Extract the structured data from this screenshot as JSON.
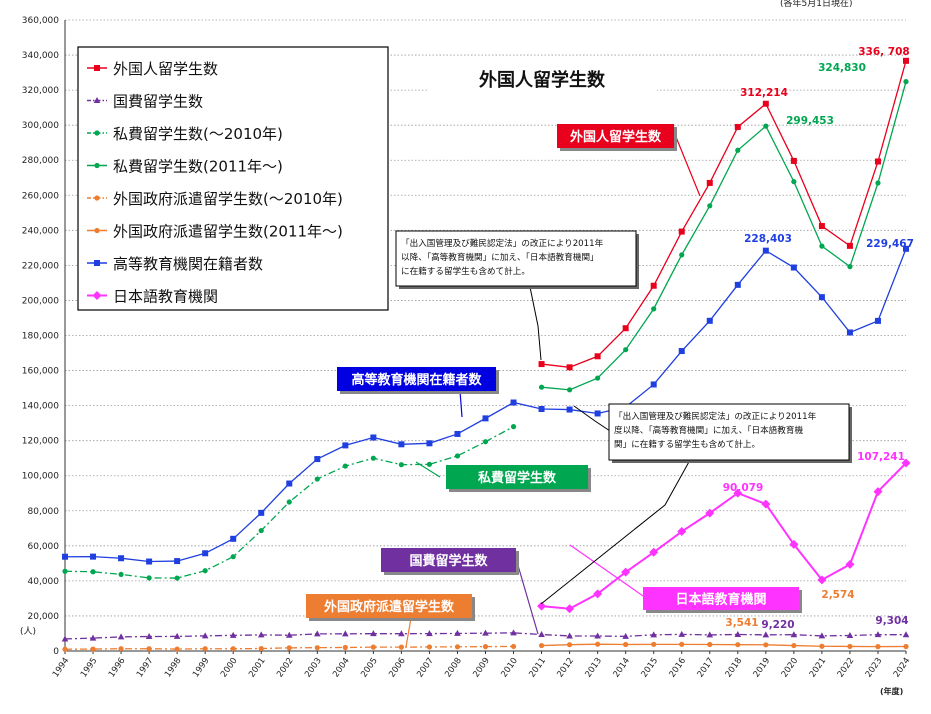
{
  "chart_data": {
    "type": "line",
    "title": "外国人留学生数",
    "date_note": "(各年5月1日現在)",
    "ylabel": "(人)",
    "xlabel": "(年度)",
    "ylim": [
      0,
      360000
    ],
    "y_ticks": [
      "0",
      "20,000",
      "40,000",
      "60,000",
      "80,000",
      "100,000",
      "120,000",
      "140,000",
      "160,000",
      "180,000",
      "200,000",
      "220,000",
      "240,000",
      "260,000",
      "280,000",
      "300,000",
      "320,000",
      "340,000",
      "360,000"
    ],
    "categories": [
      "1994",
      "1995",
      "1996",
      "1997",
      "1998",
      "1999",
      "2000",
      "2001",
      "2002",
      "2003",
      "2004",
      "2005",
      "2006",
      "2007",
      "2008",
      "2009",
      "2010",
      "2011",
      "2012",
      "2013",
      "2014",
      "2015",
      "2016",
      "2017",
      "2018",
      "2019",
      "2020",
      "2021",
      "2022",
      "2023",
      "2024"
    ],
    "grid": true,
    "legend_position": "top-left",
    "series": [
      {
        "name": "外国人留学生数",
        "color": "#e8001c",
        "marker": "square",
        "dash": "solid",
        "values": [
          null,
          null,
          null,
          null,
          null,
          null,
          null,
          null,
          null,
          null,
          null,
          null,
          null,
          null,
          null,
          null,
          null,
          163697,
          161848,
          168145,
          184155,
          208379,
          239287,
          267042,
          298980,
          312214,
          279597,
          242444,
          231146,
          279274,
          336708
        ]
      },
      {
        "name": "国費留学生数",
        "color": "#7030a0",
        "marker": "triangle",
        "dash": "dashdot",
        "values": [
          6880,
          7371,
          8051,
          8250,
          8323,
          8645,
          8930,
          9173,
          9009,
          9746,
          9804,
          9891,
          9869,
          9923,
          10020,
          10168,
          10349,
          9396,
          8588,
          8529,
          8351,
          9223,
          9481,
          9166,
          9423,
          9220,
          9304,
          8640,
          8837,
          9307,
          9304
        ]
      },
      {
        "name": "私費留学生数(～2010年)",
        "color": "#00a650",
        "marker": "circle",
        "dash": "dashdot",
        "values": [
          45500,
          45200,
          43700,
          41700,
          41600,
          45800,
          53800,
          68700,
          85000,
          98100,
          105500,
          110000,
          106300,
          106500,
          111300,
          119400,
          128000,
          null,
          null,
          null,
          null,
          null,
          null,
          null,
          null,
          null,
          null,
          null,
          null,
          null,
          null
        ]
      },
      {
        "name": "私費留学生数(2011年～)",
        "color": "#00a650",
        "marker": "circle",
        "dash": "solid",
        "values": [
          null,
          null,
          null,
          null,
          null,
          null,
          null,
          null,
          null,
          null,
          null,
          null,
          null,
          null,
          null,
          null,
          null,
          150500,
          149000,
          155700,
          171900,
          195200,
          226000,
          254000,
          285700,
          299453,
          267800,
          231000,
          219300,
          267000,
          324830
        ]
      },
      {
        "name": "外国政府派遣留学生数(～2010年)",
        "color": "#ed7d31",
        "marker": "circle",
        "dash": "dashdot",
        "values": [
          1000,
          1100,
          1300,
          1300,
          1100,
          1300,
          1300,
          1400,
          1800,
          1900,
          2000,
          2200,
          2200,
          2300,
          2400,
          2500,
          2600,
          null,
          null,
          null,
          null,
          null,
          null,
          null,
          null,
          null,
          null,
          null,
          null,
          null,
          null
        ]
      },
      {
        "name": "外国政府派遣留学生数(2011年～)",
        "color": "#ed7d31",
        "marker": "circle",
        "dash": "solid",
        "values": [
          null,
          null,
          null,
          null,
          null,
          null,
          null,
          null,
          null,
          null,
          null,
          null,
          null,
          null,
          null,
          null,
          null,
          3100,
          3600,
          3900,
          3700,
          3800,
          3800,
          3700,
          3600,
          3541,
          3100,
          2700,
          2600,
          2500,
          2574
        ]
      },
      {
        "name": "高等教育機関在籍者数",
        "color": "#1f3fe0",
        "marker": "square",
        "dash": "solid",
        "values": [
          53787,
          53847,
          52921,
          51047,
          51298,
          55755,
          64011,
          78812,
          95550,
          109508,
          117302,
          121812,
          117927,
          118498,
          123829,
          132720,
          141774,
          138075,
          137756,
          135519,
          139185,
          152062,
          171122,
          188384,
          208901,
          228403,
          218783,
          201877,
          181741,
          188340,
          229467
        ]
      },
      {
        "name": "日本語教育機関",
        "color": "#ff33ff",
        "marker": "diamond",
        "dash": "solid",
        "values": [
          null,
          null,
          null,
          null,
          null,
          null,
          null,
          null,
          null,
          null,
          null,
          null,
          null,
          null,
          null,
          null,
          null,
          25622,
          24092,
          32626,
          44970,
          56317,
          68165,
          78658,
          90079,
          83811,
          60814,
          40567,
          49405,
          90935,
          107241
        ]
      }
    ],
    "data_labels": [
      {
        "text": "336, 708",
        "color": "#e8001c"
      },
      {
        "text": "312,214",
        "color": "#e8001c"
      },
      {
        "text": "324,830",
        "color": "#00a650"
      },
      {
        "text": "299,453",
        "color": "#00a650"
      },
      {
        "text": "228,403",
        "color": "#1f3fe0"
      },
      {
        "text": "229,467",
        "color": "#1f3fe0"
      },
      {
        "text": "90,079",
        "color": "#ff33ff"
      },
      {
        "text": "107,241",
        "color": "#ff33ff"
      },
      {
        "text": "3,541",
        "color": "#ed7d31"
      },
      {
        "text": "2,574",
        "color": "#ed7d31"
      },
      {
        "text": "9,220",
        "color": "#7030a0"
      },
      {
        "text": "9,304",
        "color": "#7030a0"
      }
    ],
    "callouts": [
      {
        "text": "外国人留学生数",
        "bg": "#e8001c"
      },
      {
        "text": "高等教育機関在籍者数",
        "bg": "#0000e0"
      },
      {
        "text": "私費留学生数",
        "bg": "#00a650"
      },
      {
        "text": "国費留学生数",
        "bg": "#7030a0"
      },
      {
        "text": "外国政府派遣留学生数",
        "bg": "#ed7d31"
      },
      {
        "text": "日本語教育機関",
        "bg": "#ff33ff"
      }
    ],
    "notes": [
      [
        "「出入国管理及び難民認定法」の改正により2011年",
        "以降、「高等教育機関」に加え、「日本語教育機関」",
        "に在籍する留学生も含めて計上。"
      ],
      [
        "「出入国管理及び難民認定法」の改正により2011年",
        "度以降、「高等教育機関」に加え、「日本語教育機",
        "関」に在籍する留学生も含めて計上。"
      ]
    ]
  }
}
